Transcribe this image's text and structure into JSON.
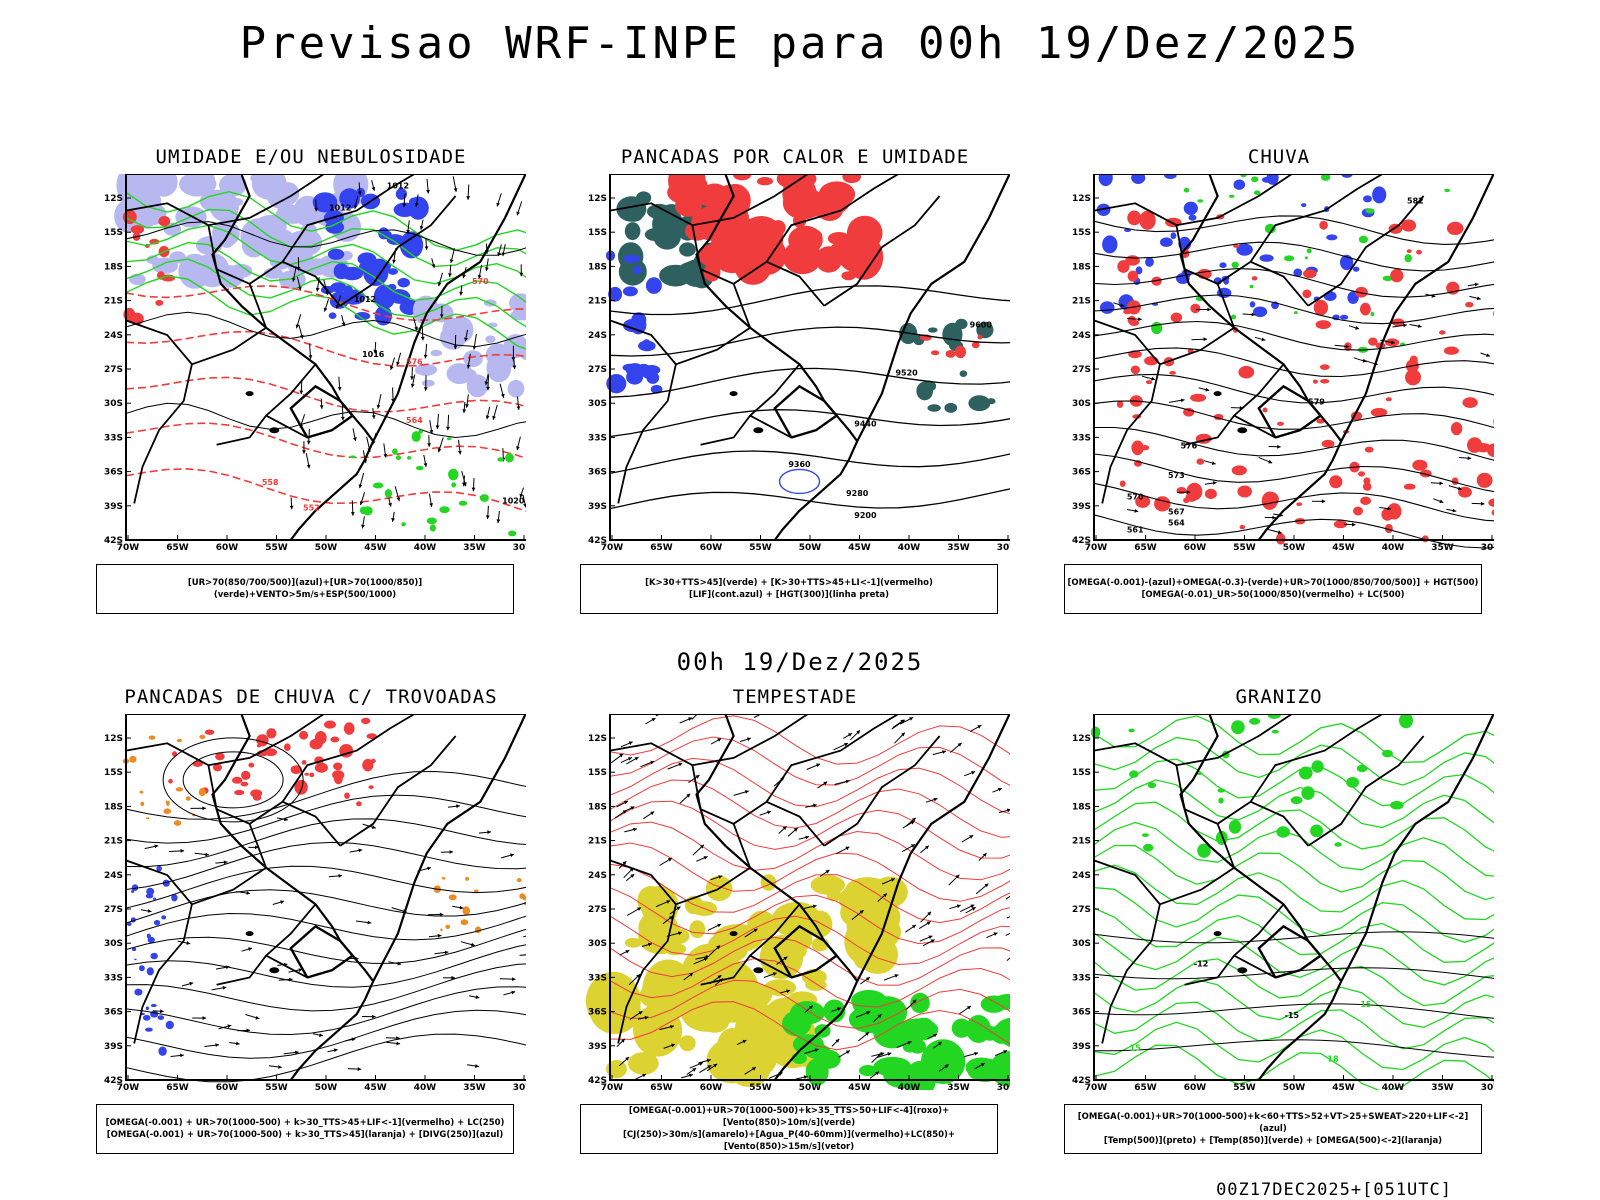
{
  "title": "Previsao WRF-INPE  para 00h 19/Dez/2025",
  "mid_title": "00h 19/Dez/2025",
  "footer": "00Z17DEC2025+[051UTC]",
  "lat_labels": [
    "12S",
    "15S",
    "18S",
    "21S",
    "24S",
    "27S",
    "30S",
    "33S",
    "36S",
    "39S",
    "42S"
  ],
  "lon_labels": [
    "70W",
    "65W",
    "60W",
    "55W",
    "50W",
    "45W",
    "40W",
    "35W",
    "30W"
  ],
  "colors": {
    "red": "#f03c3c",
    "green": "#22d622",
    "blue": "#3344ee",
    "lavender": "#b8b8f0",
    "teal": "#2f6060",
    "yellow": "#dcd232",
    "orange": "#ee8a22"
  },
  "panels": [
    {
      "title": "UMIDADE E/OU NEBULOSIDADE",
      "legend": [
        "[UR>70(850/700/500)](azul)+[UR>70(1000/850)](verde)+VENTO>5m/s+ESP(500/1000)"
      ],
      "labels": [
        {
          "t": "1012",
          "c": "#000"
        },
        {
          "t": "1012",
          "c": "#000"
        },
        {
          "t": "1012",
          "c": "#000"
        },
        {
          "t": "1016",
          "c": "#000"
        },
        {
          "t": "1020",
          "c": "#000"
        },
        {
          "t": "570",
          "c": "#f03c3c"
        },
        {
          "t": "576",
          "c": "#f03c3c"
        },
        {
          "t": "564",
          "c": "#f03c3c"
        },
        {
          "t": "558",
          "c": "#f03c3c"
        },
        {
          "t": "552",
          "c": "#f03c3c"
        }
      ]
    },
    {
      "title": "PANCADAS POR CALOR E UMIDADE",
      "legend": [
        "[K>30+TTS>45](verde) + [K>30+TTS>45+LI<-1](vermelho)",
        "[LIF](cont.azul) + [HGT(300)](linha preta)"
      ],
      "labels": [
        {
          "t": "9600",
          "c": "#000"
        },
        {
          "t": "9520",
          "c": "#000"
        },
        {
          "t": "9440",
          "c": "#000"
        },
        {
          "t": "9360",
          "c": "#000"
        },
        {
          "t": "9280",
          "c": "#000"
        },
        {
          "t": "9200",
          "c": "#000"
        }
      ]
    },
    {
      "title": "CHUVA",
      "legend": [
        "[OMEGA(-0.001)-(azul)+OMEGA(-0.3)-(verde)+UR>70(1000/850/700/500)] + HGT(500)",
        "[OMEGA(-0.01)_UR>50(1000/850)(vermelho) + LC(500)"
      ],
      "labels": [
        {
          "t": "582",
          "c": "#000"
        },
        {
          "t": "579",
          "c": "#000"
        },
        {
          "t": "576",
          "c": "#000"
        },
        {
          "t": "573",
          "c": "#000"
        },
        {
          "t": "570",
          "c": "#000"
        },
        {
          "t": "567",
          "c": "#000"
        },
        {
          "t": "564",
          "c": "#000"
        },
        {
          "t": "561",
          "c": "#000"
        }
      ]
    },
    {
      "title": "PANCADAS DE CHUVA C/ TROVOADAS",
      "legend": [
        "[OMEGA(-0.001) + UR>70(1000-500) + k>30_TTS>45+LIF<-1](vermelho) + LC(250)",
        "[OMEGA(-0.001) + UR>70(1000-500) + k>30_TTS>45](laranja) + [DIVG(250)](azul)"
      ],
      "labels": []
    },
    {
      "title": "TEMPESTADE",
      "legend": [
        "[OMEGA(-0.001)+UR>70(1000-500)+k>35_TTS>50+LIF<-4](roxo)+[Vento(850)>10m/s](verde)",
        "[CJ(250)>30m/s](amarelo)+[Agua_P(40-60mm)](vermelho)+LC(850)+[Vento(850)>15m/s](vetor)"
      ],
      "labels": []
    },
    {
      "title": "GRANIZO",
      "legend": [
        "[OMEGA(-0.001)+UR>70(1000-500)+k<60+TTS>52+VT>25+SWEAT>220+LIF<-2](azul)",
        "[Temp(500)](preto) + [Temp(850)](verde) + [OMEGA(500)<-2](laranja)"
      ],
      "labels": [
        {
          "t": "-12",
          "c": "#000"
        },
        {
          "t": "-15",
          "c": "#000"
        },
        {
          "t": "15",
          "c": "#22d622"
        },
        {
          "t": "18",
          "c": "#22d622"
        },
        {
          "t": "15",
          "c": "#22d622"
        }
      ]
    }
  ]
}
